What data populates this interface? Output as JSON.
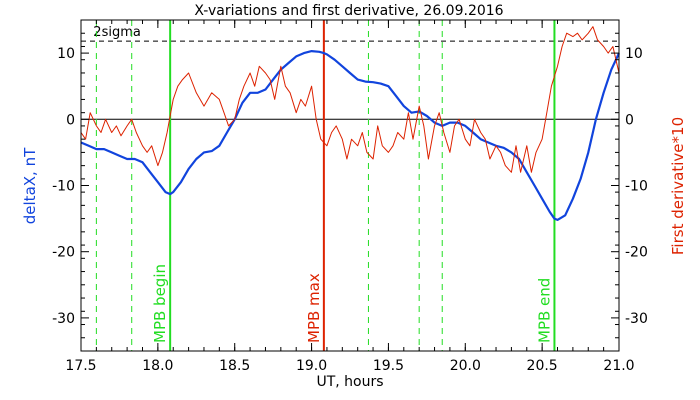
{
  "chart_data": {
    "type": "line",
    "title": "X-variations and first derivative, 26.09.2016",
    "xlabel": "UT, hours",
    "ylabel_left": "deltaX, nT",
    "ylabel_right": "First derivative*10",
    "xlim": [
      17.5,
      21.0
    ],
    "ylim": [
      -35,
      15
    ],
    "x_ticks": [
      {
        "value": 17.5,
        "label": "17.5"
      },
      {
        "value": 18.0,
        "label": "18.0"
      },
      {
        "value": 18.5,
        "label": "18.5"
      },
      {
        "value": 19.0,
        "label": "19.0"
      },
      {
        "value": 19.5,
        "label": "19.5"
      },
      {
        "value": 20.0,
        "label": "20.0"
      },
      {
        "value": 20.5,
        "label": "20.5"
      },
      {
        "value": 21.0,
        "label": "21.0"
      }
    ],
    "y_ticks": [
      {
        "value": 10,
        "label": "10"
      },
      {
        "value": 0,
        "label": "0"
      },
      {
        "value": -10,
        "label": "-10"
      },
      {
        "value": -20,
        "label": "-20"
      },
      {
        "value": -30,
        "label": "-30"
      }
    ],
    "y_right_ticks": [
      {
        "value": 10,
        "label": "10"
      },
      {
        "value": 0,
        "label": "0"
      },
      {
        "value": -10,
        "label": "-10"
      },
      {
        "value": -20,
        "label": "-20"
      },
      {
        "value": -30,
        "label": "-30"
      }
    ],
    "sigma_line": {
      "value": 11.8,
      "label": "2sigma"
    },
    "zero_line": 0,
    "markers": [
      {
        "x": 18.08,
        "label": "MPB begin",
        "color": "#22dd22"
      },
      {
        "x": 19.08,
        "label": "MPB max",
        "color": "#dd2200"
      },
      {
        "x": 20.58,
        "label": "MPB end",
        "color": "#22dd22"
      }
    ],
    "dashed_markers": [
      17.6,
      17.83,
      19.37,
      19.7,
      19.85
    ],
    "series": [
      {
        "color": "#1144dd",
        "axis": "left",
        "x": [
          17.5,
          17.55,
          17.6,
          17.65,
          17.7,
          17.75,
          17.8,
          17.85,
          17.9,
          17.95,
          18.0,
          18.05,
          18.08,
          18.1,
          18.15,
          18.2,
          18.25,
          18.3,
          18.35,
          18.4,
          18.45,
          18.5,
          18.55,
          18.6,
          18.65,
          18.7,
          18.75,
          18.8,
          18.85,
          18.9,
          18.95,
          19.0,
          19.05,
          19.08,
          19.1,
          19.15,
          19.2,
          19.25,
          19.3,
          19.35,
          19.4,
          19.45,
          19.5,
          19.55,
          19.6,
          19.65,
          19.7,
          19.75,
          19.8,
          19.85,
          19.9,
          19.95,
          20.0,
          20.05,
          20.1,
          20.15,
          20.2,
          20.25,
          20.3,
          20.35,
          20.4,
          20.45,
          20.5,
          20.55,
          20.58,
          20.6,
          20.65,
          20.7,
          20.75,
          20.8,
          20.85,
          20.9,
          20.95,
          21.0
        ],
        "y": [
          -3.5,
          -4,
          -4.5,
          -4.5,
          -5,
          -5.5,
          -6,
          -6,
          -6.5,
          -8,
          -9.5,
          -11,
          -11.3,
          -11,
          -9.5,
          -7.5,
          -6,
          -5,
          -4.8,
          -4,
          -2,
          0,
          2.5,
          4,
          4,
          4.5,
          6,
          7.5,
          8.5,
          9.5,
          10,
          10.3,
          10.2,
          10,
          9.8,
          9,
          8,
          7,
          6,
          5.7,
          5.6,
          5.4,
          5,
          3.5,
          2,
          1,
          1.2,
          0.5,
          -0.5,
          -1,
          -0.5,
          -0.5,
          -1,
          -2,
          -3,
          -3.5,
          -4,
          -4.3,
          -5,
          -6,
          -8,
          -10,
          -12,
          -14,
          -15,
          -15.2,
          -14.5,
          -12,
          -9,
          -5,
          0,
          4,
          7.5,
          10
        ]
      },
      {
        "color": "#dd2200",
        "axis": "right",
        "x": [
          17.5,
          17.53,
          17.56,
          17.6,
          17.63,
          17.66,
          17.7,
          17.73,
          17.76,
          17.8,
          17.83,
          17.86,
          17.9,
          17.93,
          17.96,
          18.0,
          18.03,
          18.06,
          18.1,
          18.13,
          18.16,
          18.2,
          18.25,
          18.3,
          18.35,
          18.4,
          18.43,
          18.46,
          18.5,
          18.53,
          18.56,
          18.6,
          18.63,
          18.66,
          18.7,
          18.73,
          18.76,
          18.8,
          18.83,
          18.86,
          18.9,
          18.93,
          18.96,
          19.0,
          19.03,
          19.06,
          19.1,
          19.13,
          19.16,
          19.2,
          19.23,
          19.26,
          19.3,
          19.33,
          19.36,
          19.4,
          19.43,
          19.46,
          19.5,
          19.53,
          19.56,
          19.6,
          19.63,
          19.66,
          19.7,
          19.73,
          19.76,
          19.8,
          19.83,
          19.86,
          19.9,
          19.93,
          19.96,
          20.0,
          20.03,
          20.06,
          20.1,
          20.13,
          20.16,
          20.2,
          20.23,
          20.26,
          20.3,
          20.33,
          20.36,
          20.4,
          20.43,
          20.46,
          20.5,
          20.53,
          20.56,
          20.6,
          20.63,
          20.66,
          20.7,
          20.73,
          20.76,
          20.8,
          20.83,
          20.86,
          20.9,
          20.93,
          20.96,
          21.0
        ],
        "y": [
          -2,
          -3,
          1,
          -1,
          -2,
          0,
          -2,
          -1,
          -2.5,
          -1,
          0,
          -2,
          -4,
          -5,
          -4,
          -7,
          -5,
          -2,
          3,
          5,
          6,
          7,
          4,
          2,
          4,
          3,
          1,
          -1,
          0,
          3,
          5,
          7,
          5,
          8,
          7,
          6,
          3,
          8,
          5,
          4,
          1,
          3,
          2,
          5,
          0,
          -3,
          -4,
          -2,
          -1,
          -3,
          -6,
          -3,
          -4,
          -2,
          -5,
          -6,
          -1,
          -4,
          -5,
          -4,
          -2,
          -3,
          1,
          -3,
          2,
          -1,
          -6,
          -1,
          1,
          -2,
          -5,
          -1,
          0,
          -3,
          -4,
          0,
          -2,
          -3,
          -6,
          -4,
          -5,
          -7,
          -8,
          -4,
          -8,
          -4,
          -8,
          -5,
          -3,
          1,
          5,
          8,
          11,
          13,
          12.5,
          13,
          12,
          13,
          14,
          12,
          11,
          10,
          11,
          7
        ]
      }
    ]
  }
}
